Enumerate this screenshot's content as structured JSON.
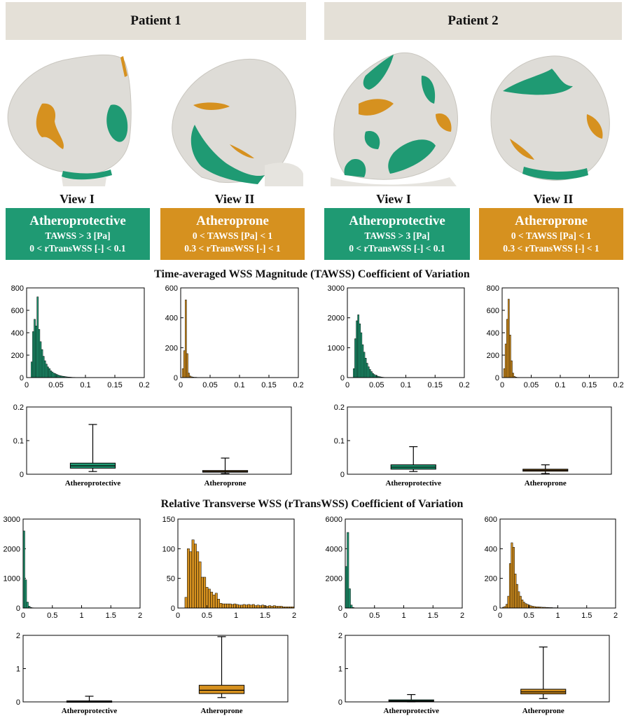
{
  "colors": {
    "protective": "#1f9a73",
    "prone": "#d6911f",
    "header_bg": "#e4e0d7"
  },
  "patients": [
    {
      "title": "Patient 1",
      "views": [
        "View I",
        "View II"
      ]
    },
    {
      "title": "Patient 2",
      "views": [
        "View I",
        "View II"
      ]
    }
  ],
  "legend": {
    "protective": {
      "title": "Atheroprotective",
      "line1": "TAWSS > 3 [Pa]",
      "line2": "0 < rTransWSS [-] < 0.1"
    },
    "prone": {
      "title": "Atheroprone",
      "line1": "0 < TAWSS [Pa] < 1",
      "line2": "0.3 < rTransWSS [-] < 1"
    }
  },
  "sections": {
    "tawss": "Time-averaged WSS Magnitude (TAWSS) Coefficient of Variation",
    "rtrans": "Relative Transverse WSS (rTransWSS) Coefficient of Variation"
  },
  "chart_data": [
    {
      "id": "h_t_p1_prot",
      "type": "bar",
      "series_name": "Atheroprotective",
      "xlim": [
        0,
        0.2
      ],
      "ylim": [
        0,
        800
      ],
      "xticks": [
        "0",
        "0.05",
        "0.1",
        "0.15",
        "0.2"
      ],
      "yticks": [
        "0",
        "200",
        "400",
        "600",
        "800"
      ],
      "bin_start": 0.0075,
      "bin_width": 0.0025,
      "values": [
        140,
        410,
        520,
        460,
        720,
        430,
        320,
        250,
        190,
        150,
        120,
        95,
        80,
        60,
        50,
        40,
        35,
        28,
        22,
        18,
        15,
        12,
        10,
        8,
        6,
        5,
        4,
        3,
        2,
        2,
        1,
        1
      ]
    },
    {
      "id": "h_t_p1_prone",
      "type": "bar",
      "series_name": "Atheroprone",
      "xlim": [
        0,
        0.2
      ],
      "ylim": [
        0,
        600
      ],
      "xticks": [
        "0",
        "0.05",
        "0.1",
        "0.15",
        "0.2"
      ],
      "yticks": [
        "0",
        "200",
        "400",
        "600"
      ],
      "bin_start": 0.0025,
      "bin_width": 0.0025,
      "values": [
        60,
        180,
        520,
        160,
        30,
        10,
        5,
        3,
        2,
        2,
        1,
        1
      ]
    },
    {
      "id": "h_t_p2_prot",
      "type": "bar",
      "series_name": "Atheroprotective",
      "xlim": [
        0,
        0.2
      ],
      "ylim": [
        0,
        3000
      ],
      "xticks": [
        "0",
        "0.05",
        "0.1",
        "0.15",
        "0.2"
      ],
      "yticks": [
        "0",
        "1000",
        "2000",
        "3000"
      ],
      "bin_start": 0.01,
      "bin_width": 0.0025,
      "values": [
        300,
        1300,
        1900,
        2100,
        1800,
        1500,
        1100,
        850,
        650,
        480,
        360,
        270,
        200,
        140,
        100,
        70,
        50,
        35,
        25,
        15,
        10,
        6,
        4,
        2
      ]
    },
    {
      "id": "h_t_p2_prone",
      "type": "bar",
      "series_name": "Atheroprone",
      "xlim": [
        0,
        0.2
      ],
      "ylim": [
        0,
        800
      ],
      "xticks": [
        "0",
        "0.05",
        "0.1",
        "0.15",
        "0.2"
      ],
      "yticks": [
        "0",
        "200",
        "400",
        "600",
        "800"
      ],
      "bin_start": 0.0025,
      "bin_width": 0.0025,
      "values": [
        80,
        300,
        520,
        700,
        380,
        150,
        40,
        10,
        4,
        2
      ]
    },
    {
      "id": "b_t_p1",
      "type": "box",
      "categories": [
        "Atheroprotective",
        "Atheroprone"
      ],
      "ylim": [
        0,
        0.2
      ],
      "yticks": [
        "0",
        "0.1",
        "0.2"
      ],
      "boxes": [
        {
          "min": 0.008,
          "q1": 0.018,
          "median": 0.025,
          "q3": 0.033,
          "max": 0.148
        },
        {
          "min": 0.002,
          "q1": 0.006,
          "median": 0.008,
          "q3": 0.011,
          "max": 0.048
        }
      ]
    },
    {
      "id": "b_t_p2",
      "type": "box",
      "categories": [
        "Atheroprotective",
        "Atheroprone"
      ],
      "ylim": [
        0,
        0.2
      ],
      "yticks": [
        "0",
        "0.1",
        "0.2"
      ],
      "boxes": [
        {
          "min": 0.008,
          "q1": 0.015,
          "median": 0.021,
          "q3": 0.028,
          "max": 0.082
        },
        {
          "min": 0.002,
          "q1": 0.009,
          "median": 0.012,
          "q3": 0.015,
          "max": 0.028
        }
      ]
    },
    {
      "id": "h_r_p1_prot",
      "type": "bar",
      "series_name": "Atheroprotective",
      "xlim": [
        0,
        2
      ],
      "ylim": [
        0,
        3000
      ],
      "xticks": [
        "0",
        "0.5",
        "1",
        "1.5",
        "2"
      ],
      "yticks": [
        "0",
        "1000",
        "2000",
        "3000"
      ],
      "bin_start": 0.0,
      "bin_width": 0.03,
      "values": [
        2600,
        950,
        200,
        60,
        20,
        8
      ]
    },
    {
      "id": "h_r_p1_prone",
      "type": "bar",
      "series_name": "Atheroprone",
      "xlim": [
        0,
        2
      ],
      "ylim": [
        0,
        150
      ],
      "xticks": [
        "0",
        "0.5",
        "1",
        "1.5",
        "2"
      ],
      "yticks": [
        "0",
        "50",
        "100",
        "150"
      ],
      "bin_start": 0.12,
      "bin_width": 0.04,
      "values": [
        18,
        100,
        95,
        115,
        108,
        95,
        78,
        52,
        52,
        35,
        32,
        27,
        22,
        25,
        15,
        8,
        7,
        7,
        7,
        7,
        6,
        7,
        6,
        5,
        5,
        6,
        5,
        6,
        5,
        6,
        4,
        5,
        4,
        5,
        4,
        3,
        4,
        3,
        4,
        3,
        3,
        3,
        2,
        2,
        2,
        2,
        2
      ]
    },
    {
      "id": "h_r_p2_prot",
      "type": "bar",
      "series_name": "Atheroprotective",
      "xlim": [
        0,
        2
      ],
      "ylim": [
        0,
        6000
      ],
      "xticks": [
        "0",
        "0.5",
        "1",
        "1.5",
        "2"
      ],
      "yticks": [
        "0",
        "2000",
        "4000",
        "6000"
      ],
      "bin_start": 0.0,
      "bin_width": 0.03,
      "values": [
        2800,
        5100,
        1300,
        200,
        40,
        10
      ]
    },
    {
      "id": "h_r_p2_prone",
      "type": "bar",
      "series_name": "Atheroprone",
      "xlim": [
        0,
        2
      ],
      "ylim": [
        0,
        600
      ],
      "xticks": [
        "0",
        "0.5",
        "1",
        "1.5",
        "2"
      ],
      "yticks": [
        "0",
        "200",
        "400",
        "600"
      ],
      "bin_start": 0.04,
      "bin_width": 0.03,
      "values": [
        5,
        10,
        25,
        80,
        300,
        440,
        410,
        230,
        160,
        110,
        80,
        55,
        40,
        30,
        25,
        20,
        15,
        12,
        10,
        8,
        8,
        7,
        6,
        5,
        5,
        4,
        4,
        3,
        3,
        2,
        2,
        2
      ]
    },
    {
      "id": "b_r_p1",
      "type": "box",
      "categories": [
        "Atheroprotective",
        "Atheroprone"
      ],
      "ylim": [
        0,
        2
      ],
      "yticks": [
        "0",
        "1",
        "2"
      ],
      "boxes": [
        {
          "min": 0.0,
          "q1": 0.005,
          "median": 0.015,
          "q3": 0.03,
          "max": 0.17
        },
        {
          "min": 0.13,
          "q1": 0.25,
          "median": 0.35,
          "q3": 0.5,
          "max": 1.96
        }
      ]
    },
    {
      "id": "b_r_p2",
      "type": "box",
      "categories": [
        "Atheroprotective",
        "Atheroprone"
      ],
      "ylim": [
        0,
        2
      ],
      "yticks": [
        "0",
        "1",
        "2"
      ],
      "boxes": [
        {
          "min": 0.0,
          "q1": 0.01,
          "median": 0.03,
          "q3": 0.06,
          "max": 0.22
        },
        {
          "min": 0.1,
          "q1": 0.24,
          "median": 0.3,
          "q3": 0.38,
          "max": 1.65
        }
      ]
    }
  ]
}
